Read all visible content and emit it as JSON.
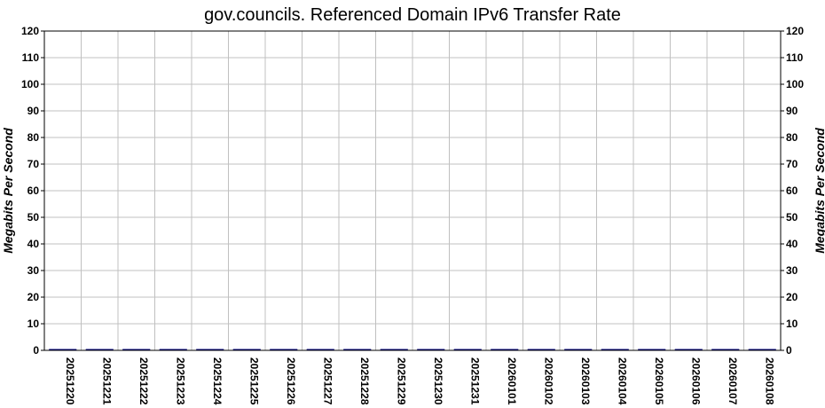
{
  "chart_data": {
    "type": "bar",
    "title": "gov.councils. Referenced Domain IPv6 Transfer Rate",
    "ylabel": "Megabits Per Second",
    "ylabel_right": "Megabits Per Second",
    "xlabel": "",
    "ylim": [
      0,
      120
    ],
    "yticks": [
      0,
      10,
      20,
      30,
      40,
      50,
      60,
      70,
      80,
      90,
      100,
      110,
      120
    ],
    "grid": true,
    "categories": [
      "20251220",
      "20251221",
      "20251222",
      "20251223",
      "20251224",
      "20251225",
      "20251226",
      "20251227",
      "20251228",
      "20251229",
      "20251230",
      "20251231",
      "20260101",
      "20260102",
      "20260103",
      "20260104",
      "20260105",
      "20260106",
      "20260107",
      "20260108"
    ],
    "values": [
      0.3,
      0.3,
      0.3,
      0.3,
      0.3,
      0.3,
      0.3,
      0.3,
      0.3,
      0.3,
      0.3,
      0.3,
      0.3,
      0.3,
      0.3,
      0.3,
      0.3,
      0.3,
      0.3,
      0.3
    ],
    "colors": {
      "bar": "#00007f",
      "grid": "#c0c0c0",
      "axis": "#000000"
    }
  }
}
